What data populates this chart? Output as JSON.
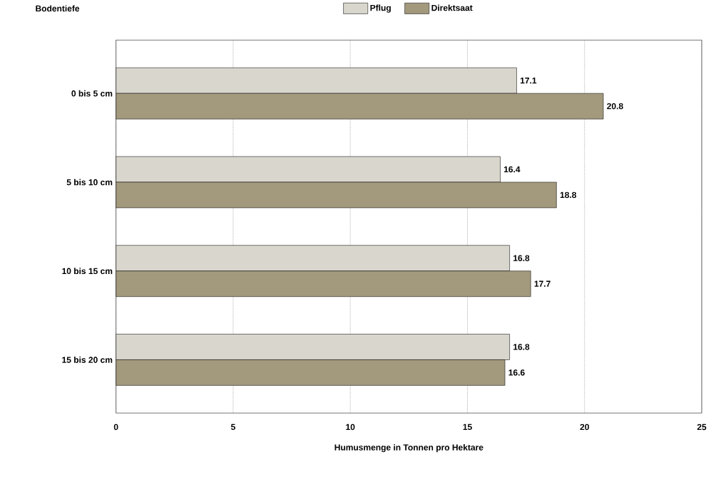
{
  "chart_data": {
    "type": "bar",
    "orientation": "horizontal",
    "xlabel": "Humusmenge in Tonnen pro Hektare",
    "ylabel": "Bodentiefe",
    "categories": [
      "0 bis 5 cm",
      "5 bis 10 cm",
      "10 bis 15 cm",
      "15 bis 20 cm"
    ],
    "series": [
      {
        "name": "Pflug",
        "color": "#d9d7cd",
        "values": [
          17.1,
          16.4,
          16.8,
          16.8
        ]
      },
      {
        "name": "Direktsaat",
        "color": "#a39a7e",
        "values": [
          20.8,
          18.8,
          17.7,
          16.6
        ]
      }
    ],
    "xlim": [
      0,
      25
    ],
    "xticks": [
      0,
      5,
      10,
      15,
      20,
      25
    ],
    "grid": "x",
    "legend": "top",
    "data_labels": true
  }
}
